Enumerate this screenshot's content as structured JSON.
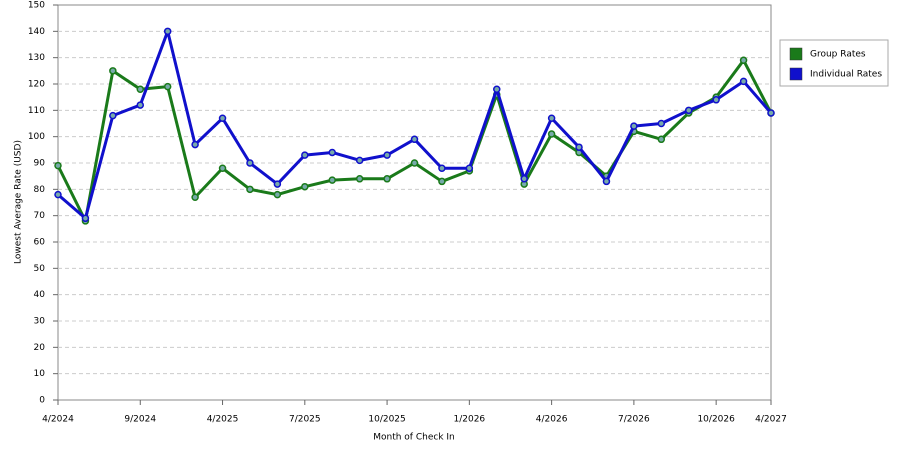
{
  "chart_data": {
    "type": "line",
    "x_label": "Month of Check In",
    "y_label": "Lowest Average Rate (USD)",
    "categories": [
      "4/2024",
      null,
      null,
      "9/2024",
      null,
      null,
      "4/2025",
      null,
      null,
      "7/2025",
      null,
      null,
      "10/2025",
      null,
      null,
      "1/2026",
      null,
      null,
      "4/2026",
      null,
      null,
      "7/2026",
      null,
      null,
      "10/2026",
      null,
      "4/2027"
    ],
    "series": [
      {
        "name": "Group Rates",
        "color": "#1a7a1a",
        "values": [
          89,
          68,
          125,
          118,
          119,
          77,
          88,
          80,
          78,
          81,
          83.5,
          84,
          84,
          90,
          83,
          87,
          116,
          82,
          101,
          94,
          85,
          102,
          99,
          109,
          115,
          129,
          109
        ]
      },
      {
        "name": "Individual Rates",
        "color": "#1010cc",
        "values": [
          78,
          69,
          108,
          112,
          140,
          97,
          107,
          90,
          82,
          93,
          94,
          91,
          93,
          99,
          88,
          88,
          118,
          84,
          107,
          96,
          83,
          104,
          105,
          110,
          114,
          121,
          109
        ]
      }
    ],
    "ylim": [
      0,
      150
    ],
    "yticks": [
      0,
      10,
      20,
      30,
      40,
      50,
      60,
      70,
      80,
      90,
      100,
      110,
      120,
      130,
      140,
      150
    ],
    "grid": true,
    "legend": "right"
  }
}
